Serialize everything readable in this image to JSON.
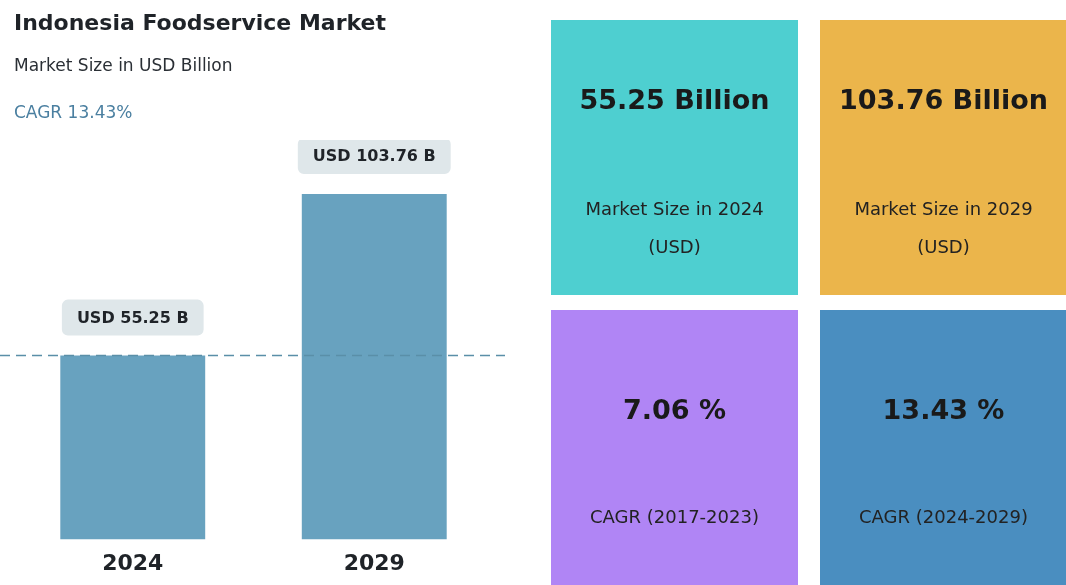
{
  "chart_data": [
    {
      "type": "bar",
      "title": "Indonesia Foodservice Market",
      "subtitle": "Market Size in USD Billion",
      "annotations": [
        "CAGR 13.43%"
      ],
      "categories": [
        "2024",
        "2029"
      ],
      "values": [
        55.25,
        103.76
      ],
      "color": "#68a2bf",
      "value_labels": [
        "USD 55.25 B",
        "USD 103.76 B"
      ],
      "ylim": [
        0,
        120
      ],
      "ref_lines": [
        {
          "axis": "y",
          "value": 55.25,
          "color": "#5a8fa8",
          "line_style": "dashed"
        }
      ]
    },
    {
      "type": "other",
      "colors": [
        "#4ecfd0",
        "#ebb54b",
        "#b085f5",
        "#4a8ec0"
      ],
      "annotations": [
        "55.25 Billion",
        "Market Size in 2024 (USD)",
        "103.76 Billion",
        "Market Size in 2029 (USD)",
        "7.06 %",
        "CAGR (2017-2023)",
        "13.43 %",
        "CAGR (2024-2029)"
      ]
    }
  ]
}
